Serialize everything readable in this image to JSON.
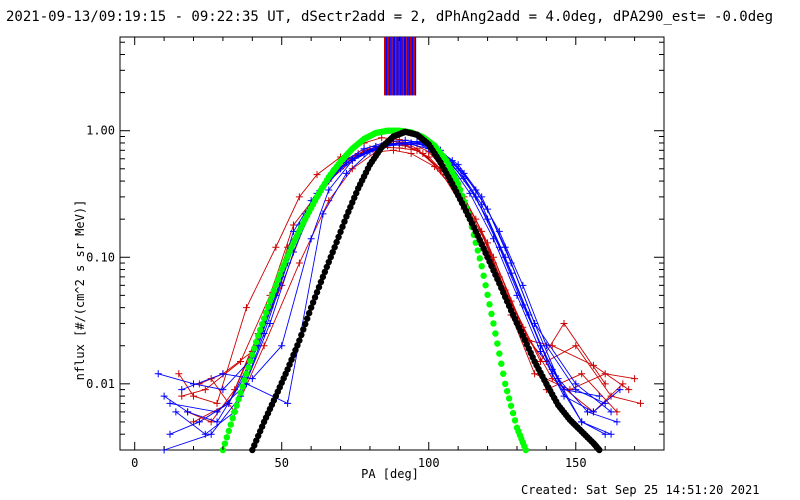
{
  "footer": {
    "created": "Created: Sat Sep 25 14:51:20 2021"
  },
  "chart_data": {
    "type": "line",
    "title": "2021-09-13/09:19:15 - 09:22:35 UT, dSectr2add = 2, dPhAng2add = 4.0deg, dPA290_est= -0.0deg",
    "xlabel": "PA [deg]",
    "ylabel": "nflux [#/(cm^2 s sr MeV)]",
    "xlim": [
      -5,
      180
    ],
    "ylim": [
      0.003,
      5.5
    ],
    "yscale": "log",
    "xticks": [
      0,
      50,
      100,
      150
    ],
    "yticks": [
      {
        "value": 0.01,
        "label": "0.01"
      },
      {
        "value": 0.1,
        "label": "0.10"
      },
      {
        "value": 1,
        "label": "1.00"
      }
    ],
    "colors": {
      "red": "#cc0000",
      "blue": "#0000ff",
      "green": "#00ff00",
      "black": "#000000"
    },
    "series": [
      {
        "color": "red",
        "x": [
          15,
          20,
          28,
          38,
          48,
          56,
          62,
          70,
          78,
          84,
          90,
          96,
          104,
          112,
          120,
          128,
          136,
          148,
          160,
          170
        ],
        "y": [
          0.012,
          0.008,
          0.007,
          0.04,
          0.12,
          0.3,
          0.45,
          0.62,
          0.8,
          0.88,
          0.85,
          0.72,
          0.48,
          0.24,
          0.1,
          0.035,
          0.012,
          0.009,
          0.012,
          0.011
        ]
      },
      {
        "color": "red",
        "x": [
          18,
          26,
          34,
          42,
          50,
          58,
          66,
          74,
          82,
          88,
          94,
          100,
          108,
          116,
          124,
          132,
          140,
          150,
          162,
          172
        ],
        "y": [
          0.006,
          0.005,
          0.009,
          0.025,
          0.08,
          0.22,
          0.4,
          0.58,
          0.75,
          0.82,
          0.8,
          0.68,
          0.42,
          0.2,
          0.07,
          0.025,
          0.015,
          0.02,
          0.008,
          0.007
        ]
      },
      {
        "color": "red",
        "x": [
          22,
          30,
          40,
          50,
          60,
          70,
          78,
          86,
          92,
          98,
          106,
          114,
          122,
          130,
          140,
          152,
          164
        ],
        "y": [
          0.01,
          0.012,
          0.018,
          0.06,
          0.25,
          0.52,
          0.7,
          0.78,
          0.76,
          0.66,
          0.45,
          0.22,
          0.09,
          0.03,
          0.009,
          0.012,
          0.006
        ]
      },
      {
        "color": "red",
        "x": [
          16,
          24,
          36,
          46,
          54,
          64,
          72,
          80,
          86,
          92,
          100,
          110,
          118,
          126,
          134,
          142,
          156,
          168
        ],
        "y": [
          0.008,
          0.009,
          0.015,
          0.05,
          0.18,
          0.36,
          0.6,
          0.72,
          0.8,
          0.78,
          0.62,
          0.36,
          0.16,
          0.055,
          0.022,
          0.02,
          0.014,
          0.009
        ]
      },
      {
        "color": "red",
        "x": [
          20,
          32,
          44,
          52,
          62,
          68,
          76,
          84,
          90,
          96,
          104,
          112,
          120,
          128,
          138,
          146,
          160
        ],
        "y": [
          0.005,
          0.007,
          0.03,
          0.12,
          0.3,
          0.5,
          0.66,
          0.74,
          0.73,
          0.7,
          0.5,
          0.3,
          0.13,
          0.045,
          0.015,
          0.03,
          0.01
        ]
      },
      {
        "color": "red",
        "x": [
          26,
          34,
          44,
          56,
          66,
          74,
          82,
          88,
          94,
          102,
          112,
          122,
          132,
          142,
          156,
          166
        ],
        "y": [
          0.011,
          0.006,
          0.02,
          0.09,
          0.28,
          0.5,
          0.68,
          0.7,
          0.66,
          0.52,
          0.28,
          0.1,
          0.028,
          0.011,
          0.006,
          0.01
        ]
      },
      {
        "color": "blue",
        "x": [
          10,
          18,
          28,
          38,
          46,
          54,
          62,
          70,
          78,
          86,
          92,
          98,
          106,
          114,
          122,
          130,
          138,
          146,
          156,
          165
        ],
        "y": [
          0.008,
          0.006,
          0.005,
          0.012,
          0.04,
          0.16,
          0.32,
          0.55,
          0.72,
          0.82,
          0.84,
          0.8,
          0.6,
          0.32,
          0.14,
          0.05,
          0.018,
          0.008,
          0.006,
          0.009
        ]
      },
      {
        "color": "blue",
        "x": [
          12,
          22,
          32,
          42,
          50,
          58,
          66,
          74,
          82,
          90,
          96,
          102,
          110,
          118,
          126,
          134,
          142,
          152,
          162
        ],
        "y": [
          0.004,
          0.005,
          0.007,
          0.02,
          0.07,
          0.22,
          0.42,
          0.6,
          0.75,
          0.8,
          0.82,
          0.74,
          0.5,
          0.26,
          0.1,
          0.035,
          0.012,
          0.005,
          0.004
        ]
      },
      {
        "color": "blue",
        "x": [
          8,
          20,
          30,
          40,
          48,
          56,
          64,
          72,
          80,
          88,
          94,
          100,
          108,
          116,
          124,
          132,
          140,
          150,
          160
        ],
        "y": [
          0.012,
          0.01,
          0.009,
          0.016,
          0.05,
          0.18,
          0.36,
          0.56,
          0.7,
          0.79,
          0.8,
          0.76,
          0.58,
          0.34,
          0.16,
          0.06,
          0.02,
          0.009,
          0.007
        ]
      },
      {
        "color": "blue",
        "x": [
          14,
          24,
          34,
          44,
          52,
          60,
          68,
          76,
          84,
          92,
          98,
          104,
          112,
          120,
          128,
          136,
          144,
          154,
          164
        ],
        "y": [
          0.006,
          0.004,
          0.006,
          0.025,
          0.09,
          0.28,
          0.48,
          0.64,
          0.76,
          0.8,
          0.78,
          0.7,
          0.46,
          0.24,
          0.09,
          0.03,
          0.011,
          0.006,
          0.005
        ]
      },
      {
        "color": "blue",
        "x": [
          10,
          26,
          36,
          46,
          54,
          62,
          70,
          78,
          86,
          94,
          100,
          108,
          116,
          124,
          132,
          142,
          152,
          160
        ],
        "y": [
          0.003,
          0.004,
          0.008,
          0.03,
          0.11,
          0.3,
          0.5,
          0.66,
          0.76,
          0.78,
          0.72,
          0.54,
          0.3,
          0.12,
          0.042,
          0.013,
          0.005,
          0.004
        ]
      },
      {
        "color": "blue",
        "x": [
          16,
          30,
          40,
          50,
          60,
          66,
          74,
          82,
          90,
          96,
          104,
          112,
          120,
          128,
          138,
          146,
          158
        ],
        "y": [
          0.009,
          0.012,
          0.011,
          0.02,
          0.14,
          0.34,
          0.58,
          0.72,
          0.8,
          0.8,
          0.66,
          0.42,
          0.2,
          0.075,
          0.02,
          0.009,
          0.008
        ]
      },
      {
        "color": "blue",
        "x": [
          12,
          28,
          38,
          52,
          64,
          72,
          80,
          88,
          94,
          102,
          110,
          118,
          126,
          136,
          150,
          162
        ],
        "y": [
          0.007,
          0.006,
          0.01,
          0.007,
          0.22,
          0.46,
          0.68,
          0.78,
          0.8,
          0.74,
          0.54,
          0.3,
          0.12,
          0.03,
          0.01,
          0.006
        ]
      },
      {
        "color": "green",
        "x": [
          30,
          34,
          38,
          42,
          46,
          50,
          54,
          58,
          62,
          66,
          70,
          74,
          78,
          82,
          86,
          90,
          94,
          98,
          102,
          106,
          110,
          114,
          118,
          122,
          126,
          130,
          133
        ],
        "y": [
          0.003,
          0.006,
          0.012,
          0.024,
          0.045,
          0.08,
          0.13,
          0.2,
          0.3,
          0.43,
          0.57,
          0.72,
          0.86,
          0.96,
          1.0,
          1.0,
          0.97,
          0.89,
          0.76,
          0.58,
          0.38,
          0.2,
          0.085,
          0.03,
          0.01,
          0.0045,
          0.003
        ]
      },
      {
        "color": "black",
        "x": [
          40,
          44,
          48,
          52,
          56,
          60,
          64,
          68,
          72,
          76,
          80,
          84,
          88,
          92,
          96,
          100,
          104,
          108,
          112,
          116,
          120,
          124,
          128,
          132,
          136,
          140,
          144,
          148,
          152,
          156,
          158
        ],
        "y": [
          0.003,
          0.005,
          0.008,
          0.013,
          0.022,
          0.04,
          0.07,
          0.12,
          0.21,
          0.35,
          0.54,
          0.74,
          0.9,
          0.98,
          0.93,
          0.78,
          0.56,
          0.38,
          0.25,
          0.16,
          0.1,
          0.062,
          0.038,
          0.024,
          0.015,
          0.01,
          0.0068,
          0.0052,
          0.0042,
          0.0034,
          0.003
        ]
      }
    ]
  }
}
